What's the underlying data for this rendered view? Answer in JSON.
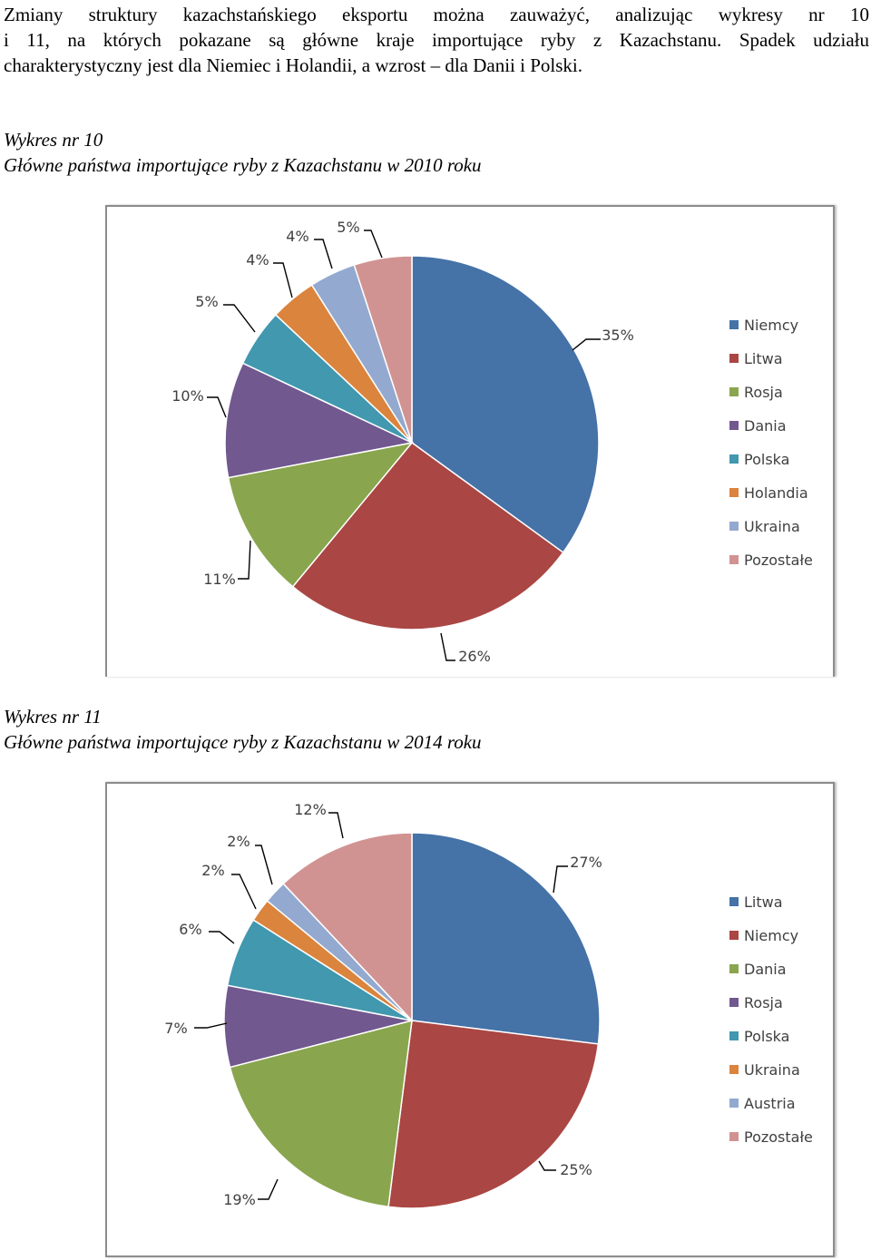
{
  "paragraph": "Zmiany struktury kazachstańskiego eksportu można zauważyć, analizując wykresy nr 10 i 11, na których pokazane są główne kraje importujące ryby z Kazachstanu. Spadek udziału charakterystyczny jest dla Niemiec i Holandii, a wzrost – dla Danii i Polski.",
  "paragraph_lines": [
    "Zmiany struktury kazachstańskiego eksportu można zauważyć, analizując wykresy nr 10",
    "i 11, na których pokazane są główne kraje importujące ryby z Kazachstanu. Spadek udziału",
    "charakterystyczny jest dla Niemiec i Holandii, a wzrost – dla Danii i Polski."
  ],
  "captions": [
    {
      "number": "Wykres nr 10",
      "title": "Główne państwa importujące ryby z Kazachstanu w 2010 roku"
    },
    {
      "number": "Wykres nr 11",
      "title": "Główne państwa importujące ryby z Kazachstanu w 2014 roku"
    }
  ],
  "chart_data": [
    {
      "type": "pie",
      "title": "",
      "legend_position": "right",
      "categories": [
        "Niemcy",
        "Litwa",
        "Rosja",
        "Dania",
        "Polska",
        "Holandia",
        "Ukraina",
        "Pozostałe"
      ],
      "values": [
        35,
        26,
        11,
        10,
        5,
        4,
        4,
        5
      ],
      "labels": [
        "35%",
        "26%",
        "11%",
        "10%",
        "5%",
        "4%",
        "4%",
        "5%"
      ],
      "colors": [
        "#4572a7",
        "#aa4643",
        "#89a54e",
        "#71588f",
        "#4198af",
        "#db843d",
        "#93a9cf",
        "#d19392"
      ]
    },
    {
      "type": "pie",
      "title": "",
      "legend_position": "right",
      "categories": [
        "Litwa",
        "Niemcy",
        "Dania",
        "Rosja",
        "Polska",
        "Ukraina",
        "Austria",
        "Pozostałe"
      ],
      "values": [
        27,
        25,
        19,
        7,
        6,
        2,
        2,
        12
      ],
      "labels": [
        "27%",
        "25%",
        "19%",
        "7%",
        "6%",
        "2%",
        "2%",
        "12%"
      ],
      "colors": [
        "#4572a7",
        "#aa4643",
        "#89a54e",
        "#71588f",
        "#4198af",
        "#db843d",
        "#93a9cf",
        "#d19392"
      ]
    }
  ]
}
